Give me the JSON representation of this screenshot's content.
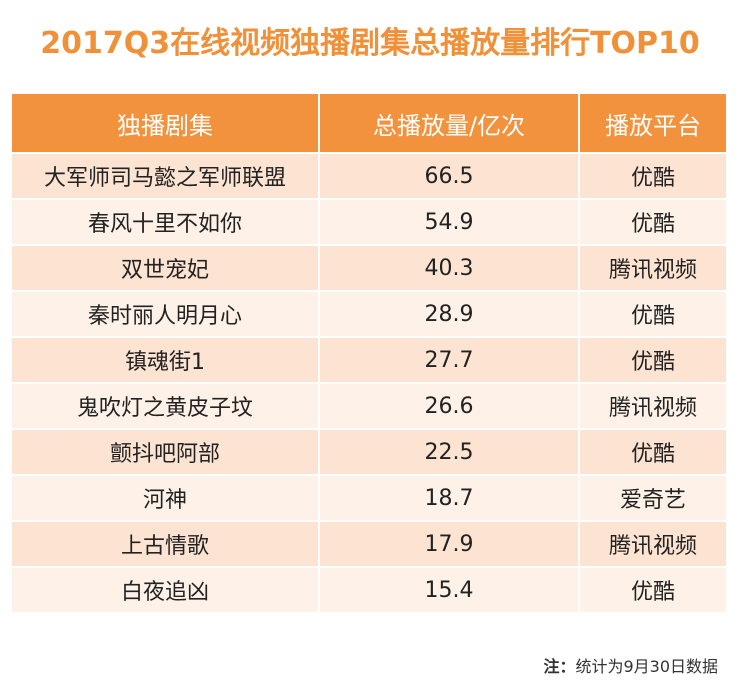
{
  "title": "2017Q3在线视频独播剧集总播放量排行TOP10",
  "chart_data": {
    "type": "table",
    "title": "2017Q3在线视频独播剧集总播放量排行TOP10",
    "columns": [
      "独播剧集",
      "总播放量/亿次",
      "播放平台"
    ],
    "rows": [
      {
        "drama": "大军师司马懿之军师联盟",
        "plays": "66.5",
        "platform": "优酷"
      },
      {
        "drama": "春风十里不如你",
        "plays": "54.9",
        "platform": "优酷"
      },
      {
        "drama": "双世宠妃",
        "plays": "40.3",
        "platform": "腾讯视频"
      },
      {
        "drama": "秦时丽人明月心",
        "plays": "28.9",
        "platform": "优酷"
      },
      {
        "drama": "镇魂街1",
        "plays": "27.7",
        "platform": "优酷"
      },
      {
        "drama": "鬼吹灯之黄皮子坟",
        "plays": "26.6",
        "platform": "腾讯视频"
      },
      {
        "drama": "颤抖吧阿部",
        "plays": "22.5",
        "platform": "优酷"
      },
      {
        "drama": "河神",
        "plays": "18.7",
        "platform": "爱奇艺"
      },
      {
        "drama": "上古情歌",
        "plays": "17.9",
        "platform": "腾讯视频"
      },
      {
        "drama": "白夜追凶",
        "plays": "15.4",
        "platform": "优酷"
      }
    ]
  },
  "note": {
    "label": "注：",
    "text": "统计为9月30日数据"
  },
  "colors": {
    "accent": "#f0913a",
    "header_bg": "#f3923d",
    "row_odd": "#fde4d2",
    "row_even": "#fef2e8"
  }
}
